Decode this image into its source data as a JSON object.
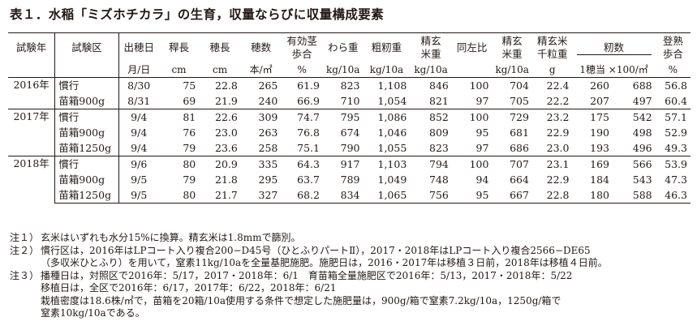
{
  "title": "表１．水稲「ミズホチカラ」の生育，収量ならびに収量構成要素",
  "headers": {
    "year": "試験年",
    "plot": "試験区",
    "heading_date": "出穂日",
    "culm_length": "稈長",
    "panicle_length": "穂長",
    "panicle_number": "穂数",
    "effective_tiller_1": "有効茎",
    "effective_tiller_2": "歩合",
    "straw_weight": "わら重",
    "rough_rice_weight": "粗籾重",
    "brown_rice_1": "精玄",
    "brown_rice_2": "米重",
    "ratio": "同左比",
    "polished_brown_1": "精玄",
    "polished_brown_2": "米重",
    "thousand_grain_1": "精玄米",
    "thousand_grain_2": "千粒重",
    "grain_number": "籾数",
    "ripening_1": "登熟",
    "ripening_2": "歩合"
  },
  "units": {
    "heading_date": "月/日",
    "culm_length": "cm",
    "panicle_length": "cm",
    "panicle_number": "本/㎡",
    "effective_tiller": "%",
    "straw_weight": "kg/10a",
    "rough_rice_weight": "kg/10a",
    "brown_rice": "kg/10a",
    "polished_brown": "kg/10a",
    "thousand_grain": "g",
    "grain_number": "1穂当 ×100/㎡",
    "ripening": "%"
  },
  "groups": [
    {
      "year": "2016年",
      "rows": [
        {
          "plot": "慣行",
          "c": [
            "8/30",
            "75",
            "22.8",
            "265",
            "61.9",
            "823",
            "1,108",
            "846",
            "100",
            "704",
            "22.4",
            "260",
            "688",
            "56.8"
          ]
        },
        {
          "plot": "苗箱900g",
          "c": [
            "8/31",
            "69",
            "21.9",
            "240",
            "66.9",
            "710",
            "1,054",
            "821",
            "97",
            "705",
            "22.2",
            "207",
            "497",
            "60.4"
          ]
        }
      ]
    },
    {
      "year": "2017年",
      "rows": [
        {
          "plot": "慣行",
          "c": [
            "9/4",
            "81",
            "22.6",
            "309",
            "74.7",
            "795",
            "1,086",
            "852",
            "100",
            "729",
            "23.2",
            "175",
            "542",
            "57.1"
          ]
        },
        {
          "plot": "苗箱900g",
          "c": [
            "9/4",
            "76",
            "23.0",
            "263",
            "76.8",
            "674",
            "1,046",
            "809",
            "95",
            "681",
            "22.9",
            "190",
            "498",
            "52.9"
          ]
        },
        {
          "plot": "苗箱1250g",
          "c": [
            "9/4",
            "79",
            "23.6",
            "258",
            "75.1",
            "790",
            "1,055",
            "823",
            "97",
            "686",
            "23.0",
            "193",
            "496",
            "49.3"
          ]
        }
      ]
    },
    {
      "year": "2018年",
      "rows": [
        {
          "plot": "慣行",
          "c": [
            "9/6",
            "80",
            "20.9",
            "335",
            "64.3",
            "917",
            "1,103",
            "794",
            "100",
            "707",
            "23.1",
            "169",
            "566",
            "53.9"
          ]
        },
        {
          "plot": "苗箱900g",
          "c": [
            "9/5",
            "79",
            "21.8",
            "295",
            "63.7",
            "789",
            "1,049",
            "748",
            "94",
            "664",
            "22.9",
            "184",
            "543",
            "47.3"
          ]
        },
        {
          "plot": "苗箱1250g",
          "c": [
            "9/5",
            "80",
            "21.7",
            "327",
            "68.2",
            "834",
            "1,065",
            "756",
            "95",
            "667",
            "22.8",
            "180",
            "588",
            "46.3"
          ]
        }
      ]
    }
  ],
  "notes": [
    {
      "label": "注１）",
      "lines": [
        "玄米はいずれも水分15%に換算。精玄米は1.8mmで篩別。"
      ]
    },
    {
      "label": "注２）",
      "lines": [
        "慣行区は，2016年はLPコート入り複合200−D45号（ひとふりパートⅡ），2017・2018年はLPコート入り複合2566−DE65",
        "（多収米ひとふり）を用いて，窒素11kg/10aを全量基肥施肥。施肥日は，2016・2017年は移植３日前，2018年は移植４日前。"
      ]
    },
    {
      "label": "注３）",
      "lines": [
        "播種日は，対照区で2016年：5/17，2017・2018年：6/1　育苗箱全量施肥区で2016年：5/13，2017・2018年：5/22",
        "移植日は，全区で2016年：6/17，2017年：6/22，2018年：6/21",
        "栽植密度は18.6株/㎡で，苗箱を20箱/10a使用する条件で想定した施肥量は，900g/箱で窒素7.2kg/10a，1250g/箱で",
        "窒素10kg/10aである。"
      ]
    }
  ]
}
